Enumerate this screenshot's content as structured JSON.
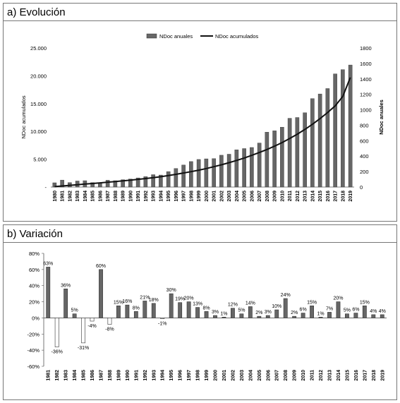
{
  "panels": {
    "a_title": "a) Evolución",
    "b_title": "b) Variación"
  },
  "chart_data": [
    {
      "type": "bar+line",
      "title": "a) Evolución",
      "x": [
        "1980",
        "1981",
        "1982",
        "1983",
        "1984",
        "1985",
        "1986",
        "1987",
        "1988",
        "1989",
        "1990",
        "1991",
        "1992",
        "1993",
        "1994",
        "1995",
        "1996",
        "1997",
        "1998",
        "1999",
        "2000",
        "2001",
        "2002",
        "2003",
        "2004",
        "2005",
        "2006",
        "2007",
        "2008",
        "2009",
        "2010",
        "2011",
        "2012",
        "2013",
        "2014",
        "2015",
        "2016",
        "2017",
        "2018",
        "2019"
      ],
      "legend": [
        "NDoc anuales",
        "NDoc acumulados"
      ],
      "legend_position": "top",
      "ylabel_left": "NDoc acumulados",
      "ylabel_right": "NDoc anuales",
      "yticks_left": [
        "-",
        "5.000",
        "10.000",
        "15.000",
        "20.000",
        "25.000"
      ],
      "yticks_right": [
        "0",
        "200",
        "400",
        "600",
        "800",
        "1000",
        "1200",
        "1400",
        "1600",
        "1800"
      ],
      "ylim_left": [
        0,
        25000
      ],
      "ylim_right": [
        0,
        1800
      ],
      "series": [
        {
          "name": "NDoc anuales",
          "type": "bar",
          "axis": "right",
          "color": "#666666",
          "values": [
            55,
            90,
            57,
            78,
            82,
            57,
            55,
            88,
            82,
            95,
            104,
            118,
            135,
            160,
            155,
            200,
            240,
            285,
            330,
            357,
            365,
            368,
            412,
            425,
            482,
            498,
            512,
            570,
            710,
            728,
            775,
            890,
            900,
            962,
            1145,
            1205,
            1275,
            1465,
            1520,
            1580
          ]
        },
        {
          "name": "NDoc acumulados",
          "type": "line",
          "axis": "left",
          "color": "#111111",
          "values": [
            75,
            195,
            310,
            420,
            530,
            640,
            750,
            870,
            990,
            1110,
            1240,
            1380,
            1520,
            1680,
            1850,
            2050,
            2280,
            2520,
            2770,
            3030,
            3330,
            3650,
            4000,
            4380,
            4780,
            5220,
            5700,
            6200,
            6750,
            7350,
            8000,
            8720,
            9500,
            10350,
            11280,
            12300,
            13400,
            14600,
            16300,
            19700
          ]
        }
      ]
    },
    {
      "type": "bar",
      "title": "b) Variación",
      "x": [
        "1981",
        "1982",
        "1983",
        "1984",
        "1985",
        "1986",
        "1987",
        "1988",
        "1989",
        "1990",
        "1991",
        "1992",
        "1993",
        "1994",
        "1995",
        "1996",
        "1997",
        "1998",
        "1999",
        "2000",
        "2001",
        "2002",
        "2003",
        "2004",
        "2005",
        "2006",
        "2007",
        "2008",
        "2009",
        "2010",
        "2011",
        "2012",
        "2013",
        "2014",
        "2015",
        "2016",
        "2017",
        "2018",
        "2019"
      ],
      "yticks": [
        "-60%",
        "-40%",
        "-20%",
        "0%",
        "20%",
        "40%",
        "60%",
        "80%"
      ],
      "ylim": [
        -60,
        80
      ],
      "grid": false,
      "series": [
        {
          "positive_color": "#666666",
          "negative_color": "#ffffff",
          "values": [
            63,
            -36,
            36,
            5,
            -31,
            -4,
            60,
            -8,
            15,
            16,
            8,
            21,
            18,
            -1,
            30,
            19,
            20,
            13,
            8,
            3,
            1,
            12,
            5,
            14,
            2,
            3,
            10,
            24,
            2,
            6,
            15,
            1,
            7,
            20,
            5,
            6,
            15,
            4,
            4
          ],
          "labels": [
            "63%",
            "-36%",
            "36%",
            "5%",
            "-31%",
            "-4%",
            "60%",
            "-8%",
            "15%",
            "16%",
            "8%",
            "21%",
            "18%",
            "-1%",
            "30%",
            "19%",
            "20%",
            "13%",
            "8%",
            "3%",
            "1%",
            "12%",
            "5%",
            "14%",
            "2%",
            "3%",
            "10%",
            "24%",
            "2%",
            "6%",
            "15%",
            "1%",
            "7%",
            "20%",
            "5%",
            "6%",
            "15%",
            "4%",
            "4%"
          ]
        }
      ]
    }
  ]
}
